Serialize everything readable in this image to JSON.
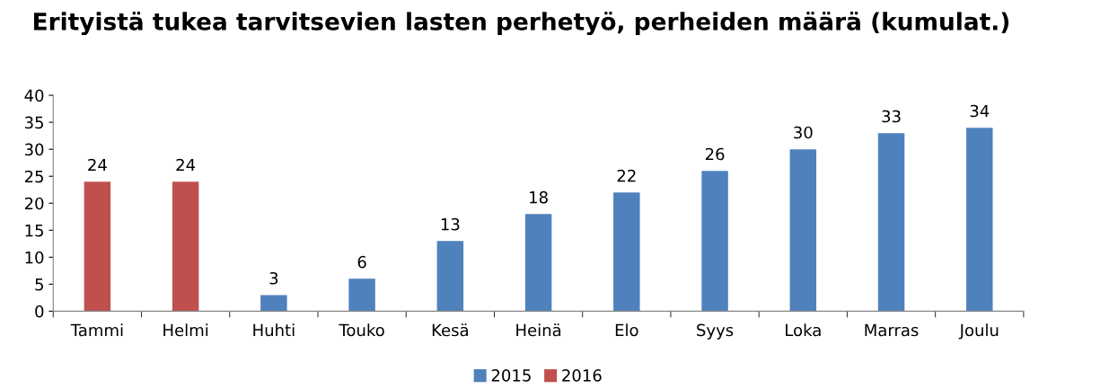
{
  "chart_data": {
    "type": "bar",
    "title": "Erityistä tukea tarvitsevien lasten perhetyö, perheiden määrä (kumulat.)",
    "categories": [
      "Tammi",
      "Helmi",
      "Huhti",
      "Touko",
      "Kesä",
      "Heinä",
      "Elo",
      "Syys",
      "Loka",
      "Marras",
      "Joulu"
    ],
    "series": [
      {
        "name": "2015",
        "color": "#4f81bd",
        "values": [
          null,
          null,
          3,
          6,
          13,
          18,
          22,
          26,
          30,
          33,
          34
        ]
      },
      {
        "name": "2016",
        "color": "#c0504d",
        "values": [
          24,
          24,
          null,
          null,
          null,
          null,
          null,
          null,
          null,
          null,
          null
        ]
      }
    ],
    "ylim": [
      0,
      40
    ],
    "yticks": [
      0,
      5,
      10,
      15,
      20,
      25,
      30,
      35,
      40
    ],
    "grid": false,
    "legend": "bottom",
    "data_labels": true
  }
}
